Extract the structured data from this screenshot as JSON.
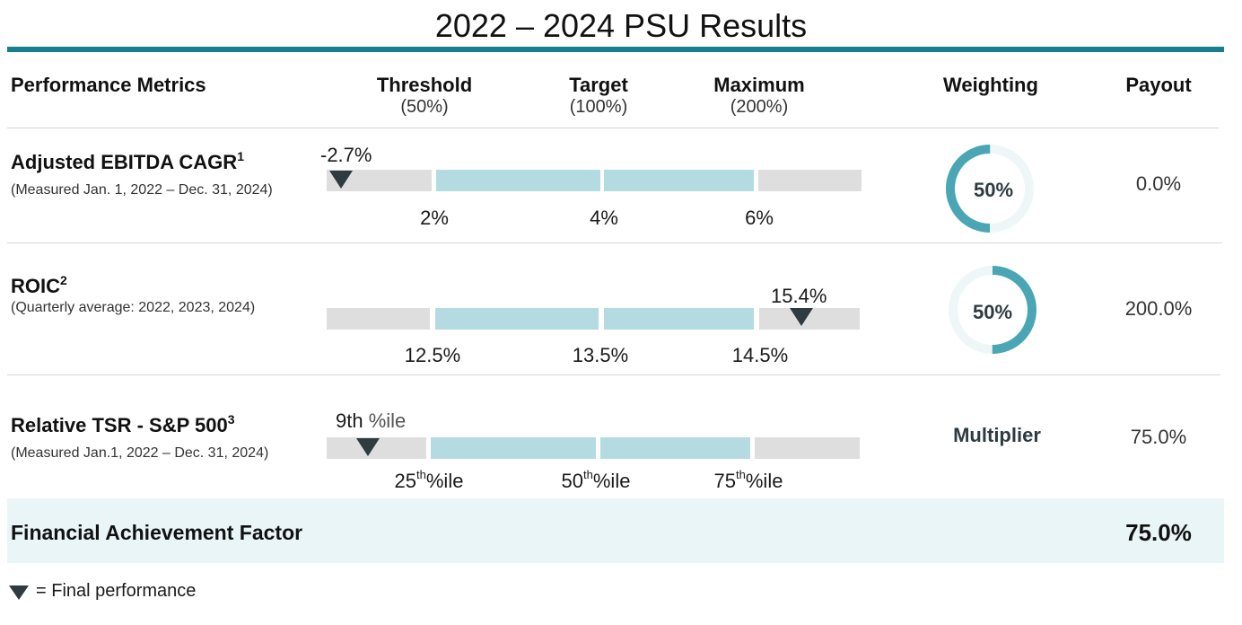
{
  "title": "2022 – 2024 PSU Results",
  "colors": {
    "accent": "#187f8f",
    "donut": "#4aa6b4",
    "teal_bar": "#b3dbe1",
    "grey_bar": "#dedede",
    "marker": "#2e3b41"
  },
  "header": {
    "metrics": "Performance Metrics",
    "threshold": "Threshold",
    "threshold_pct": "(50%)",
    "target": "Target",
    "target_pct": "(100%)",
    "maximum": "Maximum",
    "maximum_pct": "(200%)",
    "weighting": "Weighting",
    "payout": "Payout"
  },
  "rows": [
    {
      "name": "Adjusted EBITDA CAGR",
      "sup": "1",
      "sub": "(Measured Jan. 1, 2022 – Dec. 31, 2024)",
      "marker_label": "-2.7%",
      "ticks": [
        "2%",
        "4%",
        "6%"
      ],
      "weighting": "50%",
      "weighting_fraction": 0.5,
      "payout": "0.0%"
    },
    {
      "name": "ROIC",
      "sup": "2",
      "sub": "(Quarterly average: 2022, 2023, 2024)",
      "marker_label": "15.4%",
      "ticks": [
        "12.5%",
        "13.5%",
        "14.5%"
      ],
      "weighting": "50%",
      "weighting_fraction": 0.5,
      "payout": "200.0%"
    },
    {
      "name": "Relative TSR - S&P 500",
      "sup": "3",
      "sub": "(Measured Jan.1, 2022 – Dec. 31, 2024)",
      "marker_label_num": "9th",
      "marker_label_suffix": "%ile",
      "ticks_num": [
        "25",
        "50",
        "75"
      ],
      "ticks_sup": "th",
      "ticks_suffix": "%ile",
      "weighting": "Multiplier",
      "payout": "75.0%"
    }
  ],
  "footer": {
    "label": "Financial Achievement Factor",
    "value": "75.0%"
  },
  "legend": {
    "text": "= Final performance"
  }
}
